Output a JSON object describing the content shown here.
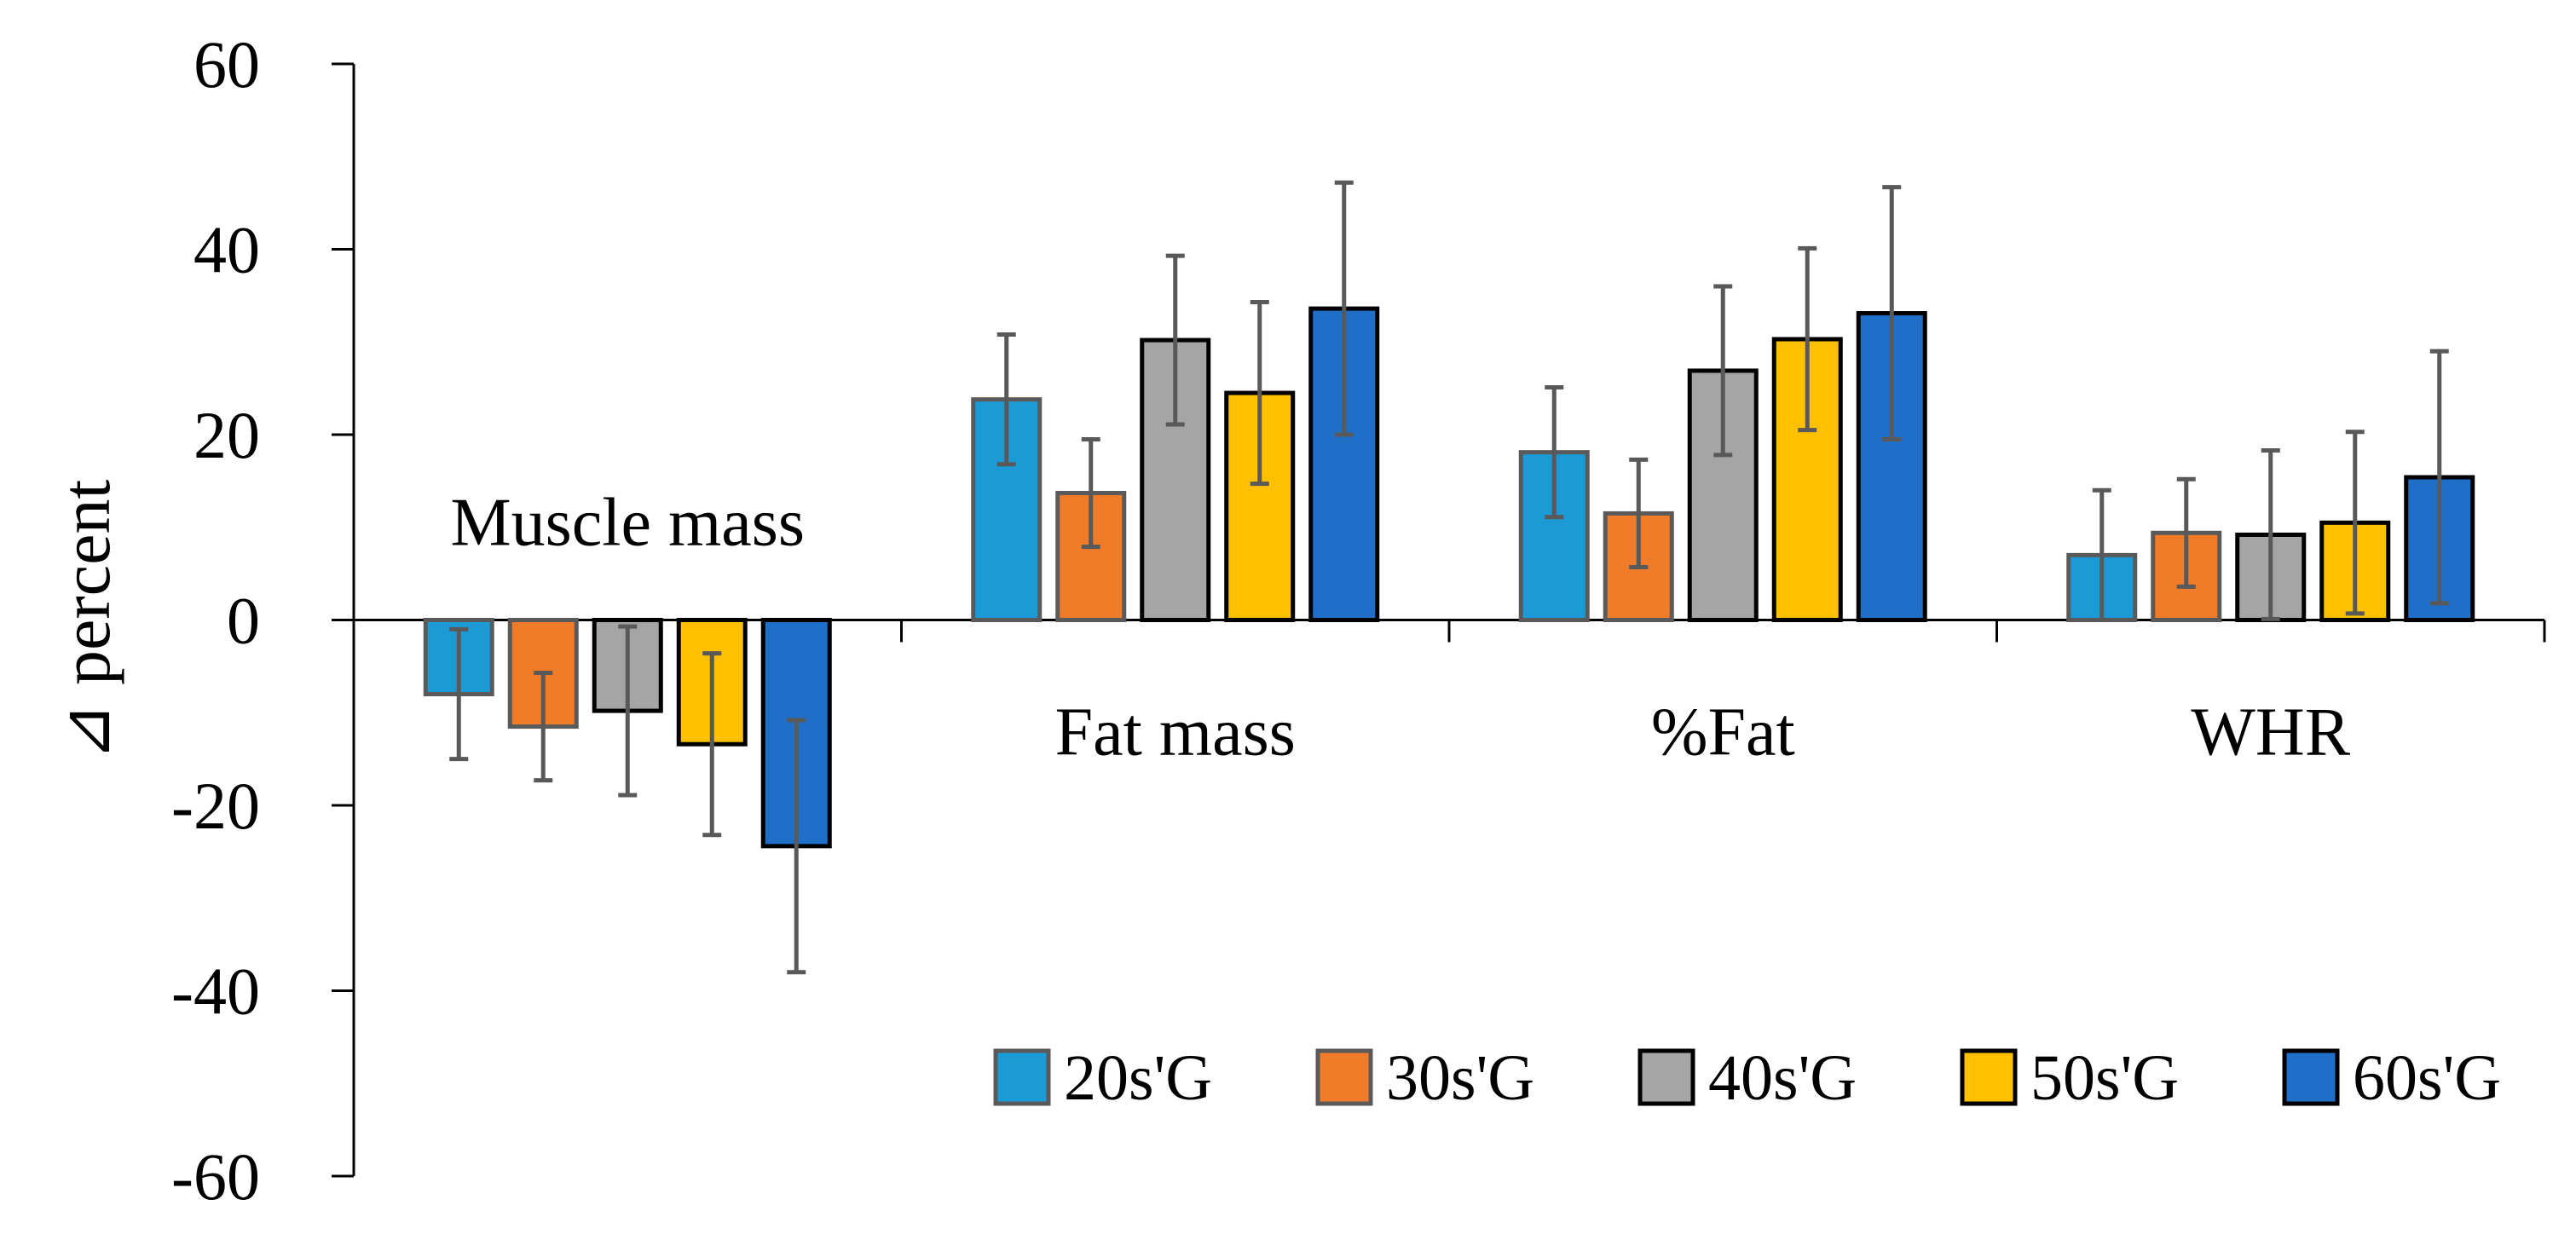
{
  "chart_data": {
    "type": "bar",
    "title": "",
    "xlabel": "",
    "ylabel": "⊿ percent",
    "ylim": [
      -60,
      60
    ],
    "ytick_step": 20,
    "grid": false,
    "legend_position": "bottom-right",
    "categories": [
      "Muscle mass",
      "Fat mass",
      "%Fat",
      "WHR"
    ],
    "series": [
      {
        "name": "20s'G",
        "color": "#1B9AD6",
        "border": "#5A5A5A",
        "values": [
          -8.0,
          23.8,
          18.1,
          7.0
        ],
        "errors": [
          7.0,
          7.0,
          7.0,
          7.0
        ]
      },
      {
        "name": "30s'G",
        "color": "#F07B28",
        "border": "#5A5A5A",
        "values": [
          -11.5,
          13.7,
          11.5,
          9.4
        ],
        "errors": [
          5.8,
          5.8,
          5.8,
          5.8
        ]
      },
      {
        "name": "40s'G",
        "color": "#A5A5A5",
        "border": "#000000",
        "values": [
          -9.8,
          30.2,
          26.9,
          9.2
        ],
        "errors": [
          9.1,
          9.1,
          9.1,
          9.1
        ]
      },
      {
        "name": "50s'G",
        "color": "#FFC000",
        "border": "#000000",
        "values": [
          -13.4,
          24.5,
          30.3,
          10.5
        ],
        "errors": [
          9.8,
          9.8,
          9.8,
          9.8
        ]
      },
      {
        "name": "60s'G",
        "color": "#1F6FC9",
        "border": "#000000",
        "values": [
          -24.4,
          33.6,
          33.1,
          15.4
        ],
        "errors": [
          13.6,
          13.6,
          13.6,
          13.6
        ]
      }
    ]
  }
}
